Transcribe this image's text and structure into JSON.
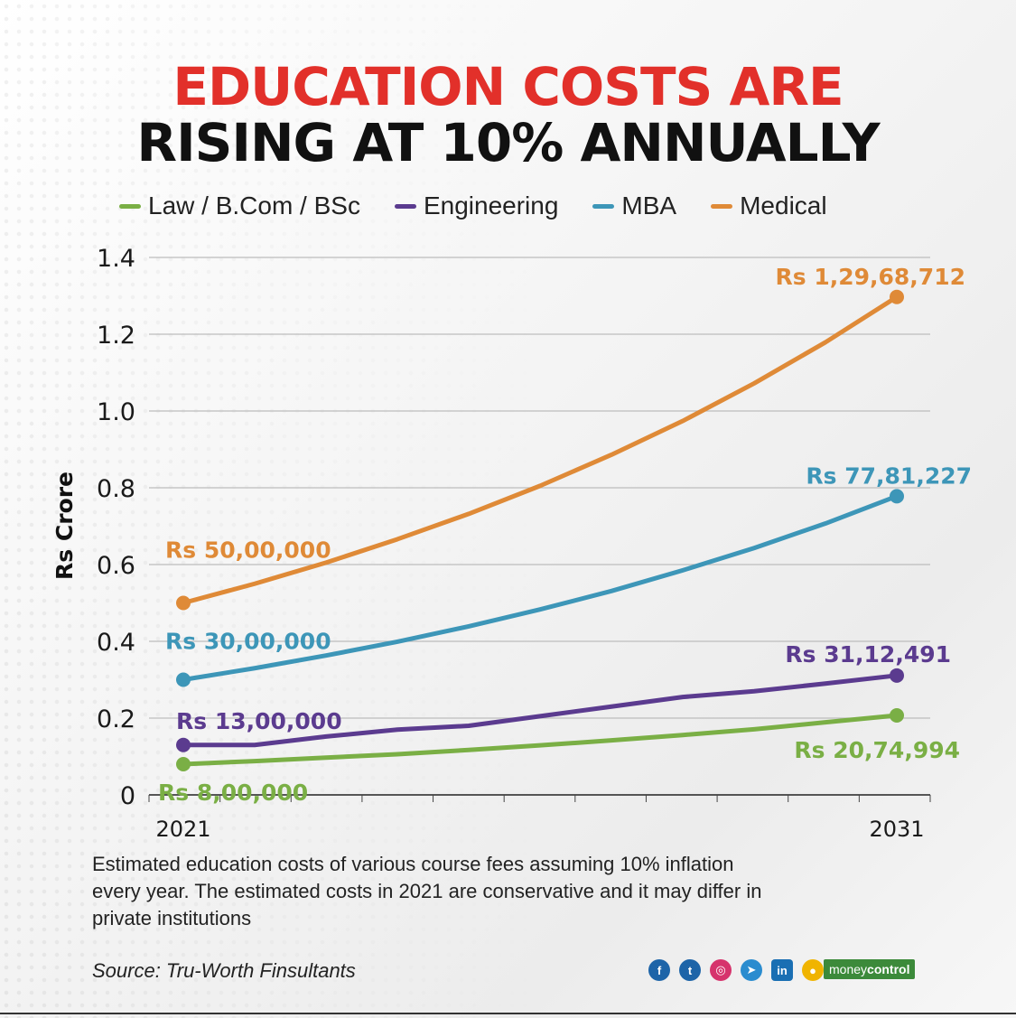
{
  "header": {
    "title_line1": "EDUCATION COSTS ARE",
    "title_line2": "RISING AT 10% ANNUALLY"
  },
  "colors": {
    "law": "#7aaf45",
    "engineering": "#5b3b8f",
    "mba": "#3d96b8",
    "medical": "#df8a37",
    "title_red": "#e2302a"
  },
  "chart_data": {
    "type": "line",
    "title": "EDUCATION COSTS ARE RISING AT 10% ANNUALLY",
    "xlabel": "",
    "ylabel": "Rs Crore",
    "x_tick_labels": [
      "2021",
      "2031"
    ],
    "xlim": [
      2021,
      2031
    ],
    "ylim": [
      0,
      1.4
    ],
    "y_ticks": [
      0,
      0.2,
      0.4,
      0.6,
      0.8,
      1.0,
      1.2,
      1.4
    ],
    "y_tick_labels": [
      "0",
      "0.2",
      "0.4",
      "0.6",
      "0.8",
      "1.0",
      "1.2",
      "1.4"
    ],
    "grid": true,
    "legend_position": "top",
    "x": [
      2021,
      2022,
      2023,
      2024,
      2025,
      2026,
      2027,
      2028,
      2029,
      2030,
      2031
    ],
    "series": [
      {
        "name": "Law / B.Com / BSc",
        "key": "law",
        "values": [
          0.08,
          0.088,
          0.097,
          0.106,
          0.117,
          0.129,
          0.142,
          0.156,
          0.171,
          0.189,
          0.207
        ],
        "start_label": "Rs 8,00,000",
        "end_label": "Rs 20,74,994"
      },
      {
        "name": "Engineering",
        "key": "engineering",
        "values": [
          0.13,
          0.13,
          0.152,
          0.17,
          0.18,
          0.205,
          0.23,
          0.255,
          0.27,
          0.29,
          0.311
        ],
        "start_label": "Rs 13,00,000",
        "end_label": "Rs 31,12,491"
      },
      {
        "name": "MBA",
        "key": "mba",
        "values": [
          0.3,
          0.33,
          0.363,
          0.399,
          0.439,
          0.483,
          0.531,
          0.585,
          0.643,
          0.707,
          0.778
        ],
        "start_label": "Rs 30,00,000",
        "end_label": "Rs 77,81,227"
      },
      {
        "name": "Medical",
        "key": "medical",
        "values": [
          0.5,
          0.55,
          0.605,
          0.666,
          0.732,
          0.805,
          0.886,
          0.974,
          1.072,
          1.179,
          1.297
        ],
        "start_label": "Rs 50,00,000",
        "end_label": "Rs 1,29,68,712"
      }
    ]
  },
  "caption": "Estimated education costs of various course fees assuming 10% inflation every year. The estimated costs in 2021 are conservative and it may differ in private institutions",
  "source": "Source: Tru-Worth Finsultants",
  "social_icons": [
    "facebook-icon",
    "twitter-icon",
    "instagram-icon",
    "telegram-icon",
    "linkedin-icon",
    "koo-icon"
  ],
  "social_glyphs": [
    "f",
    "t",
    "◎",
    "➤",
    "in",
    "●"
  ],
  "brand": {
    "part1": "money",
    "part2": "control"
  }
}
